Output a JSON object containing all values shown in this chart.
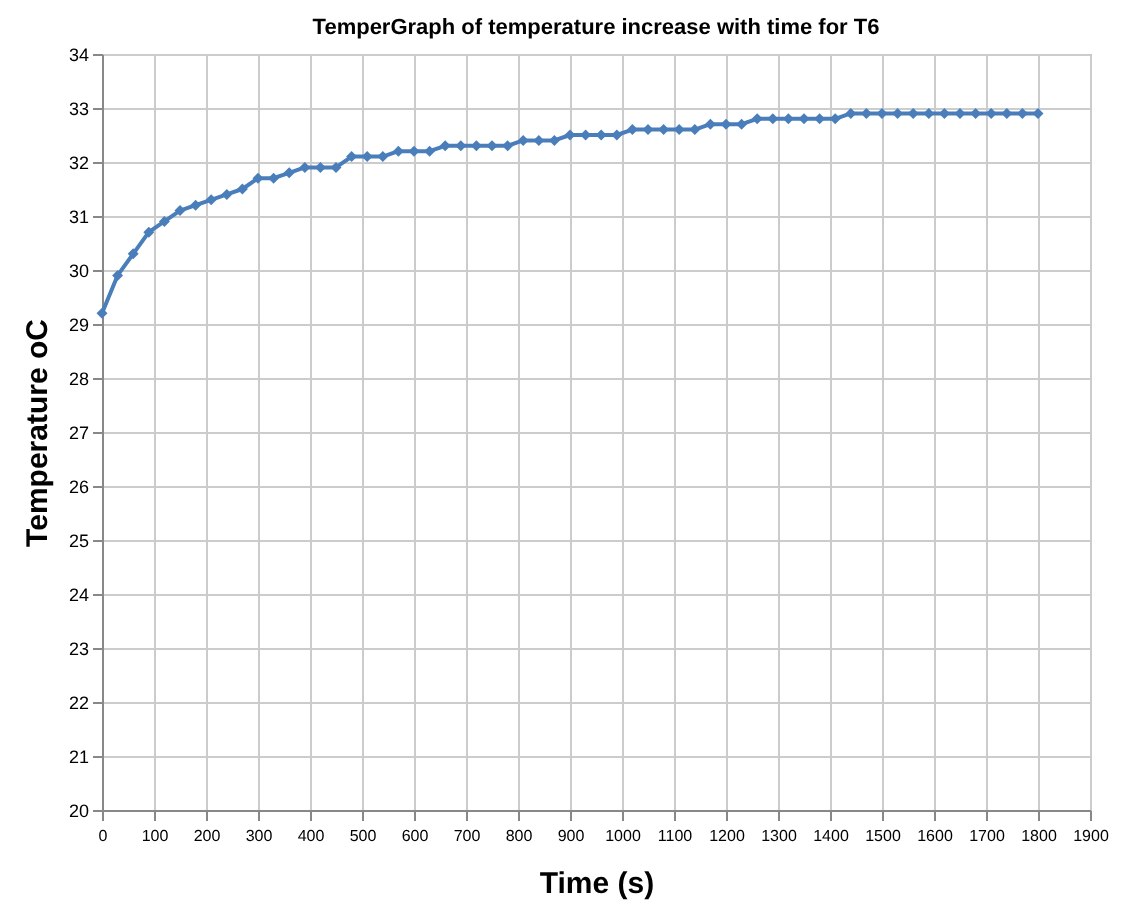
{
  "chart_data": {
    "type": "line",
    "title": "TemperGraph of temperature increase with time for T6",
    "xlabel": "Time (s)",
    "ylabel": "Temperature oC",
    "x": [
      0,
      30,
      60,
      90,
      120,
      150,
      180,
      210,
      240,
      270,
      300,
      330,
      360,
      390,
      420,
      450,
      480,
      510,
      540,
      570,
      600,
      630,
      660,
      690,
      720,
      750,
      780,
      810,
      840,
      870,
      900,
      930,
      960,
      990,
      1020,
      1050,
      1080,
      1110,
      1140,
      1170,
      1200,
      1230,
      1260,
      1290,
      1320,
      1350,
      1380,
      1410,
      1440,
      1470,
      1500,
      1530,
      1560,
      1590,
      1620,
      1650,
      1680,
      1710,
      1740,
      1770,
      1800
    ],
    "series": [
      {
        "color": "#4a7ebb",
        "values": [
          29.2,
          29.9,
          30.3,
          30.7,
          30.9,
          31.1,
          31.2,
          31.3,
          31.4,
          31.5,
          31.7,
          31.7,
          31.8,
          31.9,
          31.9,
          31.9,
          32.1,
          32.1,
          32.1,
          32.2,
          32.2,
          32.2,
          32.3,
          32.3,
          32.3,
          32.3,
          32.3,
          32.4,
          32.4,
          32.4,
          32.5,
          32.5,
          32.5,
          32.5,
          32.6,
          32.6,
          32.6,
          32.6,
          32.6,
          32.7,
          32.7,
          32.7,
          32.8,
          32.8,
          32.8,
          32.8,
          32.8,
          32.8,
          32.9,
          32.9,
          32.9,
          32.9,
          32.9,
          32.9,
          32.9,
          32.9,
          32.9,
          32.9,
          32.9,
          32.9,
          32.9
        ]
      }
    ],
    "xlim": [
      0,
      1900
    ],
    "xticks": [
      0,
      100,
      200,
      300,
      400,
      500,
      600,
      700,
      800,
      900,
      1000,
      1100,
      1200,
      1300,
      1400,
      1500,
      1600,
      1700,
      1800,
      1900
    ],
    "ylim": [
      20,
      34
    ],
    "yticks": [
      20,
      21,
      22,
      23,
      24,
      25,
      26,
      27,
      28,
      29,
      30,
      31,
      32,
      33,
      34
    ],
    "grid": true,
    "marker": "diamond",
    "line_style": "solid",
    "legend": false
  }
}
